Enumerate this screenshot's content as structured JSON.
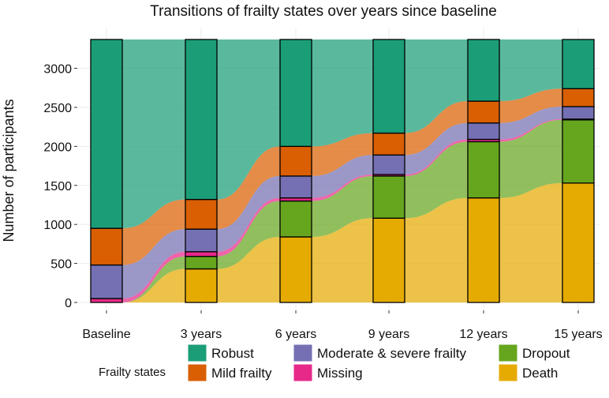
{
  "chart_data": {
    "type": "alluvial",
    "title": "Transitions of frailty states over years since baseline",
    "xlabel": "",
    "ylabel": "Number of participants",
    "ylim": [
      0,
      3370
    ],
    "yticks": [
      0,
      500,
      1000,
      1500,
      2000,
      2500,
      3000
    ],
    "categories": [
      "Baseline",
      "3 years",
      "6 years",
      "9 years",
      "12 years",
      "15 years"
    ],
    "legend_title": "Frailty states",
    "states": [
      {
        "key": "death",
        "name": "Death",
        "color": "#E6AB02"
      },
      {
        "key": "dropout",
        "name": "Dropout",
        "color": "#66A61E"
      },
      {
        "key": "missing",
        "name": "Missing",
        "color": "#E7298A"
      },
      {
        "key": "moderate",
        "name": "Moderate & severe frailty",
        "color": "#7570B3"
      },
      {
        "key": "mild",
        "name": "Mild frailty",
        "color": "#D95F02"
      },
      {
        "key": "robust",
        "name": "Robust",
        "color": "#1B9E77"
      }
    ],
    "legend_order": [
      "robust",
      "mild",
      "moderate",
      "missing",
      "dropout",
      "death"
    ],
    "legend_columns": [
      [
        "robust",
        "mild"
      ],
      [
        "moderate",
        "missing"
      ],
      [
        "dropout",
        "death"
      ]
    ],
    "counts": {
      "death": [
        0,
        430,
        840,
        1080,
        1340,
        1530
      ],
      "dropout": [
        0,
        160,
        460,
        540,
        720,
        810
      ],
      "missing": [
        50,
        60,
        40,
        20,
        30,
        10
      ],
      "moderate": [
        430,
        290,
        280,
        250,
        210,
        160
      ],
      "mild": [
        470,
        380,
        380,
        280,
        280,
        230
      ],
      "robust": [
        2420,
        2050,
        1370,
        1200,
        790,
        630
      ]
    }
  }
}
